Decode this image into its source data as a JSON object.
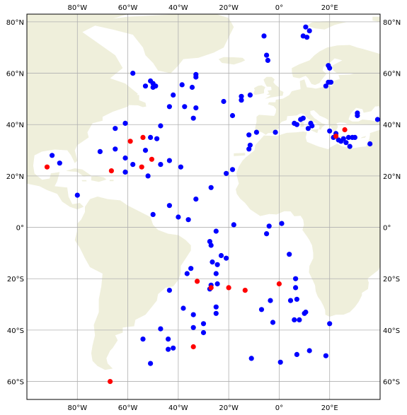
{
  "map": {
    "lon_range": [
      -100,
      40
    ],
    "lat_range": [
      -67,
      83
    ],
    "ocean_color": "#ffffff",
    "land_color": "#efefdb",
    "grid_color": "#b0b0b0",
    "frame_color": "#000000",
    "colors": {
      "blue": "#0000ff",
      "red": "#ff0000"
    },
    "lon_ticks": [
      {
        "value": -80,
        "label": "80°W"
      },
      {
        "value": -60,
        "label": "60°W"
      },
      {
        "value": -40,
        "label": "40°W"
      },
      {
        "value": -20,
        "label": "20°W"
      },
      {
        "value": 0,
        "label": "0°"
      },
      {
        "value": 20,
        "label": "20°E"
      }
    ],
    "lat_ticks": [
      {
        "value": 80,
        "label": "80°N"
      },
      {
        "value": 60,
        "label": "60°N"
      },
      {
        "value": 40,
        "label": "40°N"
      },
      {
        "value": 20,
        "label": "20°N"
      },
      {
        "value": 0,
        "label": "0°"
      },
      {
        "value": -20,
        "label": "20°S"
      },
      {
        "value": -40,
        "label": "40°S"
      },
      {
        "value": -60,
        "label": "60°S"
      }
    ]
  },
  "chart_data": {
    "type": "scatter",
    "title": "",
    "xlabel": "",
    "ylabel": "",
    "grid": true,
    "xlim": [
      -100,
      40
    ],
    "ylim": [
      -67,
      83
    ],
    "series": [
      {
        "color": "#0000ff",
        "points": [
          [
            -90,
            28
          ],
          [
            -87,
            25
          ],
          [
            -80,
            12.5
          ],
          [
            -71,
            29.5
          ],
          [
            -65,
            38.5
          ],
          [
            -65,
            30.5
          ],
          [
            -61,
            40.5
          ],
          [
            -61,
            27
          ],
          [
            -61,
            21.5
          ],
          [
            -58,
            24.5
          ],
          [
            -58,
            60
          ],
          [
            -53,
            55
          ],
          [
            -51,
            57
          ],
          [
            -50,
            56
          ],
          [
            -49,
            55
          ],
          [
            -50,
            54.5
          ],
          [
            -51,
            35
          ],
          [
            -48.5,
            34.5
          ],
          [
            -47,
            39.5
          ],
          [
            -47,
            24.5
          ],
          [
            -53,
            30
          ],
          [
            -52,
            20
          ],
          [
            -50,
            5
          ],
          [
            -43.5,
            47
          ],
          [
            -42,
            51.5
          ],
          [
            -38.5,
            55.5
          ],
          [
            -37.5,
            47
          ],
          [
            -34.5,
            54.5
          ],
          [
            -33,
            59.5
          ],
          [
            -33,
            58.5
          ],
          [
            -33,
            46.5
          ],
          [
            -34,
            42.5
          ],
          [
            -43.5,
            26
          ],
          [
            -39,
            23.5
          ],
          [
            -43.5,
            8.5
          ],
          [
            -40,
            4
          ],
          [
            -36,
            3
          ],
          [
            -33,
            11
          ],
          [
            -22,
            49
          ],
          [
            -15,
            51
          ],
          [
            -15,
            49.5
          ],
          [
            -11.5,
            51.5
          ],
          [
            -18.5,
            43.5
          ],
          [
            -6,
            74.5
          ],
          [
            -5,
            67
          ],
          [
            -4.5,
            65
          ],
          [
            -12,
            36
          ],
          [
            -9,
            37
          ],
          [
            -11.5,
            32
          ],
          [
            -12,
            30.5
          ],
          [
            -18.5,
            22.5
          ],
          [
            -21,
            21
          ],
          [
            -27,
            15.5
          ],
          [
            -18,
            1
          ],
          [
            -25,
            -1.5
          ],
          [
            -27.5,
            -5.5
          ],
          [
            -27,
            -7
          ],
          [
            -23,
            -11
          ],
          [
            -21,
            -12
          ],
          [
            -26.5,
            -13.5
          ],
          [
            -24.5,
            -14.5
          ],
          [
            -25,
            -18
          ],
          [
            -35,
            -16
          ],
          [
            -36.5,
            -18
          ],
          [
            -24.5,
            -22
          ],
          [
            -27,
            -22.5
          ],
          [
            -27.5,
            -24
          ],
          [
            -43.5,
            -24.5
          ],
          [
            -25,
            -31
          ],
          [
            -25,
            -33.5
          ],
          [
            -34,
            -34
          ],
          [
            -38,
            -31.5
          ],
          [
            -30,
            -37.5
          ],
          [
            -34,
            -39
          ],
          [
            -30,
            -41
          ],
          [
            -47,
            -39.5
          ],
          [
            -44,
            -43.5
          ],
          [
            -54,
            -43.5
          ],
          [
            -42,
            -47
          ],
          [
            -44,
            -47.5
          ],
          [
            -51,
            -53
          ],
          [
            -11,
            -51
          ],
          [
            -5,
            -2.5
          ],
          [
            -4,
            0.5
          ],
          [
            1,
            1.5
          ],
          [
            4,
            -10.5
          ],
          [
            6.5,
            -20
          ],
          [
            6.5,
            -23.5
          ],
          [
            7,
            -28
          ],
          [
            4.5,
            -28.5
          ],
          [
            -3.5,
            -28.5
          ],
          [
            -7,
            -32
          ],
          [
            -2.5,
            -37
          ],
          [
            6,
            -36
          ],
          [
            8,
            -36
          ],
          [
            10,
            -33.5
          ],
          [
            10.5,
            -33
          ],
          [
            20,
            -37.5
          ],
          [
            18.5,
            -50
          ],
          [
            12,
            -48
          ],
          [
            7,
            -49.5
          ],
          [
            0.5,
            -52.5
          ],
          [
            10.5,
            78
          ],
          [
            12,
            76.5
          ],
          [
            9.5,
            74.5
          ],
          [
            11,
            74
          ],
          [
            19.5,
            63
          ],
          [
            20,
            62
          ],
          [
            19.5,
            56.5
          ],
          [
            20.5,
            56.5
          ],
          [
            18.5,
            55
          ],
          [
            6,
            40.5
          ],
          [
            7,
            40
          ],
          [
            8.5,
            42
          ],
          [
            9.5,
            42.5
          ],
          [
            11.5,
            38.5
          ],
          [
            12.5,
            40.5
          ],
          [
            13,
            39.5
          ],
          [
            -1.5,
            37
          ],
          [
            20,
            37.5
          ],
          [
            21.5,
            35
          ],
          [
            22.5,
            36.5
          ],
          [
            23.5,
            34
          ],
          [
            24.5,
            33.5
          ],
          [
            25.5,
            34.5
          ],
          [
            26.5,
            33
          ],
          [
            27.5,
            35
          ],
          [
            28,
            31.5
          ],
          [
            29,
            35
          ],
          [
            30,
            35
          ],
          [
            31,
            44.5
          ],
          [
            31,
            43.5
          ],
          [
            36,
            32.5
          ],
          [
            39,
            42
          ]
        ]
      },
      {
        "color": "#ff0000",
        "points": [
          [
            -92,
            23.5
          ],
          [
            -66.5,
            22
          ],
          [
            -59,
            33.5
          ],
          [
            -54,
            35
          ],
          [
            -54.5,
            23.5
          ],
          [
            -50.5,
            26.5
          ],
          [
            -32.5,
            -21
          ],
          [
            -27,
            -23.5
          ],
          [
            -20,
            -23.5
          ],
          [
            -13.5,
            -24.5
          ],
          [
            0,
            -22
          ],
          [
            -34,
            -46.5
          ],
          [
            -67,
            -60
          ],
          [
            22.5,
            35.5
          ],
          [
            26,
            38
          ]
        ]
      }
    ]
  }
}
